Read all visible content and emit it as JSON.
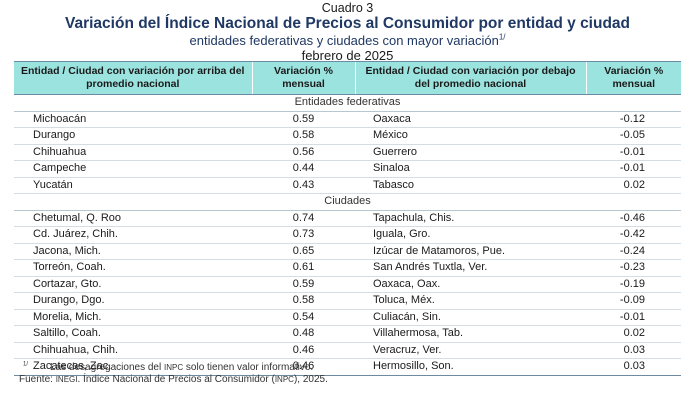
{
  "header": {
    "cuadro": "Cuadro 3",
    "title": "Variación del Índice Nacional de Precios al Consumidor por entidad y ciudad",
    "subtitle": "entidades federativas y ciudades con mayor variación",
    "subtitle_note": "1/",
    "date": "febrero de 2025"
  },
  "table": {
    "columns": [
      "Entidad / Ciudad con variación por arriba del promedio nacional",
      "Variación % mensual",
      "Entidad / Ciudad con variación por debajo del promedio nacional",
      "Variación % mensual"
    ],
    "sections": [
      {
        "title": "Entidades federativas",
        "rows": [
          [
            "Michoacán",
            "0.59",
            "Oaxaca",
            "-0.12"
          ],
          [
            "Durango",
            "0.58",
            "México",
            "-0.05"
          ],
          [
            "Chihuahua",
            "0.56",
            "Guerrero",
            "-0.01"
          ],
          [
            "Campeche",
            "0.44",
            "Sinaloa",
            "-0.01"
          ],
          [
            "Yucatán",
            "0.43",
            "Tabasco",
            "0.02"
          ]
        ]
      },
      {
        "title": "Ciudades",
        "rows": [
          [
            "Chetumal, Q. Roo",
            "0.74",
            "Tapachula, Chis.",
            "-0.46"
          ],
          [
            "Cd. Juárez, Chih.",
            "0.73",
            "Iguala, Gro.",
            "-0.42"
          ],
          [
            "Jacona, Mich.",
            "0.65",
            "Izúcar de Matamoros, Pue.",
            "-0.24"
          ],
          [
            "Torreón, Coah.",
            "0.61",
            "San Andrés Tuxtla, Ver.",
            "-0.23"
          ],
          [
            "Cortazar, Gto.",
            "0.59",
            "Oaxaca, Oax.",
            "-0.19"
          ],
          [
            "Durango, Dgo.",
            "0.58",
            "Toluca, Méx.",
            "-0.09"
          ],
          [
            "Morelia, Mich.",
            "0.54",
            "Culiacán, Sin.",
            "-0.01"
          ],
          [
            "Saltillo, Coah.",
            "0.48",
            "Villahermosa, Tab.",
            "0.02"
          ],
          [
            "Chihuahua, Chih.",
            "0.46",
            "Veracruz, Ver.",
            "0.03"
          ],
          [
            "Zacatecas, Zac.",
            "0.46",
            "Hermosillo, Son.",
            "0.03"
          ]
        ]
      }
    ]
  },
  "notes": {
    "note1_marker": "1/",
    "note1_a": "Las desagregaciones del",
    "note1_abbr": "INPC",
    "note1_b": "solo tienen valor informativo.",
    "source_label": "Fuente:",
    "source_org": "INEGI",
    "source_a": ". Índice Nacional de Precios al Consumidor (",
    "source_abbr": "INPC",
    "source_b": "), 2025."
  }
}
